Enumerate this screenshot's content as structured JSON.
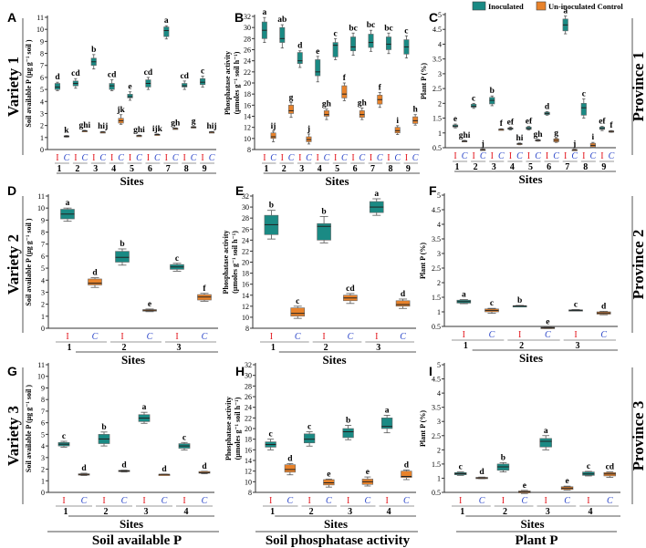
{
  "legend": {
    "inoculated": "Inoculated",
    "control": "Un-inoculated Control"
  },
  "row_labels": [
    "Variety 1",
    "Variety 2",
    "Variety 3"
  ],
  "province_labels": [
    "Province 1",
    "Province 2",
    "Province 3"
  ],
  "column_titles": [
    "Soil available P",
    "Soil phosphatase activity",
    "Plant P"
  ],
  "colors": {
    "inoculated": "#1a8a84",
    "control": "#e8822a",
    "label_I": "#e3141b",
    "label_C": "#2a45c8"
  },
  "chart_data": [
    {
      "panel": "A",
      "type": "box",
      "ylabel": [
        "Soil available P (µg g⁻¹ soil )"
      ],
      "xlabel": "Sites",
      "ylim": [
        0,
        11
      ],
      "yticks": [
        "0",
        "1",
        "2",
        "3",
        "4",
        "5",
        "6",
        "7",
        "8",
        "9",
        "10",
        "11"
      ],
      "treatments": [
        "I",
        "C"
      ],
      "sites": [
        "1",
        "2",
        "3",
        "4",
        "5",
        "6",
        "7",
        "8",
        "9"
      ],
      "inoculated": [
        [
          4.9,
          5.0,
          5.2,
          5.5,
          5.6,
          "d"
        ],
        [
          5.1,
          5.3,
          5.5,
          5.7,
          5.9,
          "cd"
        ],
        [
          6.7,
          7.0,
          7.3,
          7.6,
          7.9,
          "b"
        ],
        [
          4.9,
          5.0,
          5.3,
          5.5,
          5.8,
          "cd"
        ],
        [
          4.1,
          4.3,
          4.4,
          4.6,
          4.8,
          "e"
        ],
        [
          5.0,
          5.2,
          5.5,
          5.8,
          6.0,
          "cd"
        ],
        [
          9.2,
          9.4,
          9.9,
          10.2,
          10.3,
          "a"
        ],
        [
          5.0,
          5.2,
          5.3,
          5.5,
          5.7,
          "cd"
        ],
        [
          5.2,
          5.4,
          5.6,
          5.9,
          6.1,
          "c"
        ]
      ],
      "control": [
        [
          1.03,
          1.05,
          1.1,
          1.15,
          1.17,
          "k"
        ],
        [
          1.5,
          1.52,
          1.55,
          1.58,
          1.6,
          "ghi"
        ],
        [
          1.4,
          1.42,
          1.45,
          1.48,
          1.5,
          "hij"
        ],
        [
          2.1,
          2.2,
          2.4,
          2.6,
          2.9,
          "jk"
        ],
        [
          1.1,
          1.12,
          1.15,
          1.18,
          1.2,
          "ghi"
        ],
        [
          1.2,
          1.22,
          1.25,
          1.28,
          1.3,
          "ijk"
        ],
        [
          1.7,
          1.72,
          1.75,
          1.78,
          1.8,
          "gh"
        ],
        [
          1.8,
          1.82,
          1.85,
          1.9,
          1.92,
          "g"
        ],
        [
          1.4,
          1.42,
          1.45,
          1.48,
          1.5,
          "hij"
        ]
      ]
    },
    {
      "panel": "B",
      "type": "box",
      "ylabel": [
        "Phosphatase activity",
        "(µmoles g⁻¹ soil h⁻¹)"
      ],
      "xlabel": "Sites",
      "ylim": [
        8,
        32
      ],
      "yticks": [
        "8",
        "10",
        "12",
        "14",
        "16",
        "18",
        "20",
        "22",
        "24",
        "26",
        "28",
        "30",
        "32"
      ],
      "treatments": [
        "I",
        "C"
      ],
      "sites": [
        "1",
        "2",
        "3",
        "4",
        "5",
        "6",
        "7",
        "8",
        "9"
      ],
      "inoculated": [
        [
          27.3,
          28,
          29.5,
          31,
          31.8,
          "a"
        ],
        [
          26.3,
          27.3,
          28,
          30,
          30.5,
          "ab"
        ],
        [
          22.8,
          23.5,
          24,
          25.5,
          25.8,
          "d"
        ],
        [
          20.2,
          21.3,
          22,
          24.2,
          24.8,
          "e"
        ],
        [
          24.2,
          24.7,
          26.8,
          27.3,
          28,
          "c"
        ],
        [
          25,
          25.8,
          26.5,
          28.3,
          29,
          "bc"
        ],
        [
          25.7,
          26.4,
          27.3,
          28.8,
          29.5,
          "bc"
        ],
        [
          25.3,
          26,
          27,
          28.3,
          29,
          "bc"
        ],
        [
          24.5,
          25.2,
          26.5,
          27.8,
          28.5,
          "c"
        ]
      ],
      "control": [
        [
          9.4,
          10,
          10.3,
          11,
          11.3,
          "ij"
        ],
        [
          13.8,
          14.5,
          15,
          16,
          16.5,
          "g"
        ],
        [
          9,
          9.4,
          9.8,
          10.3,
          10.8,
          "j"
        ],
        [
          13.4,
          14,
          14.3,
          15,
          15.3,
          "gh"
        ],
        [
          16.8,
          17.3,
          18,
          19.5,
          20,
          "f"
        ],
        [
          13.4,
          13.8,
          14.3,
          15,
          15.5,
          "gh"
        ],
        [
          15.6,
          16.2,
          17,
          17.8,
          18.3,
          "f"
        ],
        [
          10.7,
          11,
          11.4,
          12,
          12.3,
          "i"
        ],
        [
          12.4,
          12.7,
          13.2,
          13.9,
          14.3,
          "h"
        ]
      ]
    },
    {
      "panel": "C",
      "type": "box",
      "ylabel": [
        "Plant P (%)"
      ],
      "xlabel": "Sites",
      "ylim": [
        0.5,
        5
      ],
      "yticks": [
        "0.5",
        "1",
        "1.5",
        "2",
        "2.5",
        "3",
        "3.5",
        "4",
        "4.5",
        "5"
      ],
      "treatments": [
        "I",
        "C"
      ],
      "sites": [
        "1",
        "2",
        "3",
        "4",
        "5",
        "6",
        "7",
        "8",
        "9"
      ],
      "inoculated": [
        [
          1.17,
          1.2,
          1.23,
          1.27,
          1.3,
          "e"
        ],
        [
          1.83,
          1.87,
          1.9,
          1.97,
          2.0,
          "c"
        ],
        [
          1.92,
          1.98,
          2.1,
          2.2,
          2.25,
          "b"
        ],
        [
          1.1,
          1.12,
          1.15,
          1.17,
          1.2,
          "ef"
        ],
        [
          1.1,
          1.12,
          1.15,
          1.2,
          1.22,
          "ef"
        ],
        [
          1.6,
          1.62,
          1.66,
          1.7,
          1.72,
          "d"
        ],
        [
          4.35,
          4.45,
          4.65,
          4.85,
          4.95,
          "a"
        ],
        [
          1.5,
          1.6,
          1.85,
          2.0,
          2.15,
          "c"
        ],
        [
          1.08,
          1.12,
          1.15,
          1.2,
          1.22,
          "ef"
        ]
      ],
      "control": [
        [
          0.7,
          0.71,
          0.72,
          0.74,
          0.75,
          "ghi"
        ],
        [
          0.41,
          0.42,
          0.43,
          0.45,
          0.46,
          "j"
        ],
        [
          1.1,
          1.11,
          1.12,
          1.13,
          1.14,
          "f"
        ],
        [
          0.6,
          0.61,
          0.63,
          0.65,
          0.66,
          "hi"
        ],
        [
          0.72,
          0.73,
          0.75,
          0.77,
          0.78,
          "gh"
        ],
        [
          0.68,
          0.7,
          0.75,
          0.8,
          0.82,
          "g"
        ],
        [
          0.41,
          0.42,
          0.43,
          0.44,
          0.45,
          "j"
        ],
        [
          0.5,
          0.53,
          0.58,
          0.65,
          0.68,
          "i"
        ],
        [
          1.02,
          1.03,
          1.05,
          1.07,
          1.08,
          "f"
        ]
      ]
    },
    {
      "panel": "D",
      "type": "box",
      "ylabel": [
        "Soil available P (µg g⁻¹ soil )"
      ],
      "xlabel": "Sites",
      "ylim": [
        0,
        11
      ],
      "yticks": [
        "0",
        "1",
        "2",
        "3",
        "4",
        "5",
        "6",
        "7",
        "8",
        "9",
        "10",
        "11"
      ],
      "treatments": [
        "I",
        "C"
      ],
      "sites": [
        "1",
        "2",
        "3"
      ],
      "inoculated": [
        [
          8.9,
          9.1,
          9.5,
          9.9,
          10.0,
          "a"
        ],
        [
          5.25,
          5.5,
          5.9,
          6.4,
          6.6,
          "b"
        ],
        [
          4.75,
          4.9,
          5.1,
          5.3,
          5.4,
          "c"
        ]
      ],
      "control": [
        [
          3.4,
          3.6,
          3.75,
          4.1,
          4.2,
          "d"
        ],
        [
          1.38,
          1.42,
          1.5,
          1.55,
          1.6,
          "e"
        ],
        [
          2.25,
          2.35,
          2.6,
          2.8,
          2.9,
          "f"
        ]
      ]
    },
    {
      "panel": "E",
      "type": "box",
      "ylabel": [
        "Phosphatase activity",
        "(µmoles g⁻¹ soil h⁻¹)"
      ],
      "xlabel": "Sites",
      "ylim": [
        8,
        32
      ],
      "yticks": [
        "8",
        "10",
        "12",
        "14",
        "16",
        "18",
        "20",
        "22",
        "24",
        "26",
        "28",
        "30",
        "32"
      ],
      "treatments": [
        "I",
        "C"
      ],
      "sites": [
        "1",
        "2",
        "3"
      ],
      "inoculated": [
        [
          24.2,
          25,
          26.8,
          28.5,
          29.4,
          "b"
        ],
        [
          23.5,
          24,
          26.5,
          27,
          28.3,
          "b"
        ],
        [
          28.5,
          29,
          30,
          31,
          31.5,
          "a"
        ]
      ],
      "control": [
        [
          9.8,
          10.2,
          10.7,
          11.7,
          12,
          "c"
        ],
        [
          12.5,
          13,
          13.5,
          14,
          14.3,
          "cd"
        ],
        [
          11.6,
          12,
          12.3,
          13,
          13.3,
          "d"
        ]
      ]
    },
    {
      "panel": "F",
      "type": "box",
      "ylabel": [
        "Plant P (%)"
      ],
      "xlabel": "Sites",
      "ylim": [
        0.5,
        5
      ],
      "yticks": [
        "0.5",
        "1",
        "1.5",
        "2",
        "2.5",
        "3",
        "3.5",
        "4",
        "4.5",
        "5"
      ],
      "treatments": [
        "I",
        "C"
      ],
      "sites": [
        "1",
        "2",
        "3"
      ],
      "inoculated": [
        [
          1.28,
          1.3,
          1.35,
          1.4,
          1.42,
          "a"
        ],
        [
          1.18,
          1.19,
          1.2,
          1.21,
          1.22,
          "b"
        ],
        [
          1.03,
          1.04,
          1.05,
          1.07,
          1.08,
          "c"
        ]
      ],
      "control": [
        [
          0.95,
          1.0,
          1.05,
          1.1,
          1.12,
          "c"
        ],
        [
          0.43,
          0.44,
          0.45,
          0.47,
          0.48,
          "e"
        ],
        [
          0.9,
          0.92,
          0.96,
          1.0,
          1.02,
          "d"
        ]
      ]
    },
    {
      "panel": "G",
      "type": "box",
      "ylabel": [
        "Soil available P (µg g⁻¹ soil )"
      ],
      "xlabel": "Sites",
      "ylim": [
        0,
        11
      ],
      "yticks": [
        "0",
        "1",
        "2",
        "3",
        "4",
        "5",
        "6",
        "7",
        "8",
        "9",
        "10",
        "11"
      ],
      "treatments": [
        "I",
        "C"
      ],
      "sites": [
        "1",
        "2",
        "3",
        "4"
      ],
      "inoculated": [
        [
          3.9,
          4.0,
          4.15,
          4.3,
          4.4,
          "c"
        ],
        [
          4.0,
          4.2,
          4.6,
          5.0,
          5.2,
          "b"
        ],
        [
          5.95,
          6.1,
          6.4,
          6.7,
          6.9,
          "a"
        ],
        [
          3.65,
          3.8,
          4.0,
          4.2,
          4.3,
          "c"
        ]
      ],
      "control": [
        [
          1.45,
          1.5,
          1.55,
          1.6,
          1.65,
          "d"
        ],
        [
          1.75,
          1.8,
          1.85,
          1.9,
          1.92,
          "d"
        ],
        [
          1.52,
          1.53,
          1.55,
          1.56,
          1.57,
          "d"
        ],
        [
          1.6,
          1.65,
          1.7,
          1.8,
          1.82,
          "d"
        ]
      ]
    },
    {
      "panel": "H",
      "type": "box",
      "ylabel": [
        "Phosphatase activity",
        "(µmoles g⁻¹ soil h⁻¹)"
      ],
      "xlabel": "Sites",
      "ylim": [
        8,
        32
      ],
      "yticks": [
        "8",
        "10",
        "12",
        "14",
        "16",
        "18",
        "20",
        "22",
        "24",
        "26",
        "28",
        "30",
        "32"
      ],
      "treatments": [
        "I",
        "C"
      ],
      "sites": [
        "1",
        "2",
        "3",
        "4"
      ],
      "inoculated": [
        [
          16,
          16.5,
          17,
          17.5,
          18,
          "c"
        ],
        [
          16.7,
          17.3,
          18,
          19,
          19.4,
          "c"
        ],
        [
          17.9,
          18.3,
          19.4,
          20,
          20.6,
          "b"
        ],
        [
          19.2,
          20,
          20.4,
          22,
          22.5,
          "a"
        ]
      ],
      "control": [
        [
          11.3,
          11.8,
          12.3,
          13.2,
          13.4,
          "d"
        ],
        [
          9,
          9.4,
          9.8,
          10.4,
          10.5,
          "e"
        ],
        [
          9.2,
          9.5,
          10,
          10.5,
          10.9,
          "e"
        ],
        [
          10.4,
          10.8,
          11,
          12,
          12.2,
          "d"
        ]
      ]
    },
    {
      "panel": "I",
      "type": "box",
      "ylabel": [
        "Plant P (%)"
      ],
      "xlabel": "Sites",
      "ylim": [
        0.5,
        5
      ],
      "yticks": [
        "0.5",
        "1",
        "1.5",
        "2",
        "2.5",
        "3",
        "3.5",
        "4",
        "4.5",
        "5"
      ],
      "treatments": [
        "I",
        "C"
      ],
      "sites": [
        "1",
        "2",
        "3",
        "4"
      ],
      "inoculated": [
        [
          1.1,
          1.12,
          1.16,
          1.2,
          1.22,
          "c"
        ],
        [
          1.22,
          1.28,
          1.4,
          1.5,
          1.55,
          "b"
        ],
        [
          2.0,
          2.1,
          2.3,
          2.4,
          2.5,
          "a"
        ],
        [
          1.08,
          1.1,
          1.15,
          1.22,
          1.24,
          "c"
        ]
      ],
      "control": [
        [
          0.98,
          1.0,
          1.01,
          1.03,
          1.04,
          "d"
        ],
        [
          0.46,
          0.48,
          0.52,
          0.55,
          0.57,
          "e"
        ],
        [
          0.58,
          0.6,
          0.65,
          0.7,
          0.72,
          "e"
        ],
        [
          1.03,
          1.08,
          1.15,
          1.2,
          1.22,
          "cd"
        ]
      ]
    }
  ]
}
